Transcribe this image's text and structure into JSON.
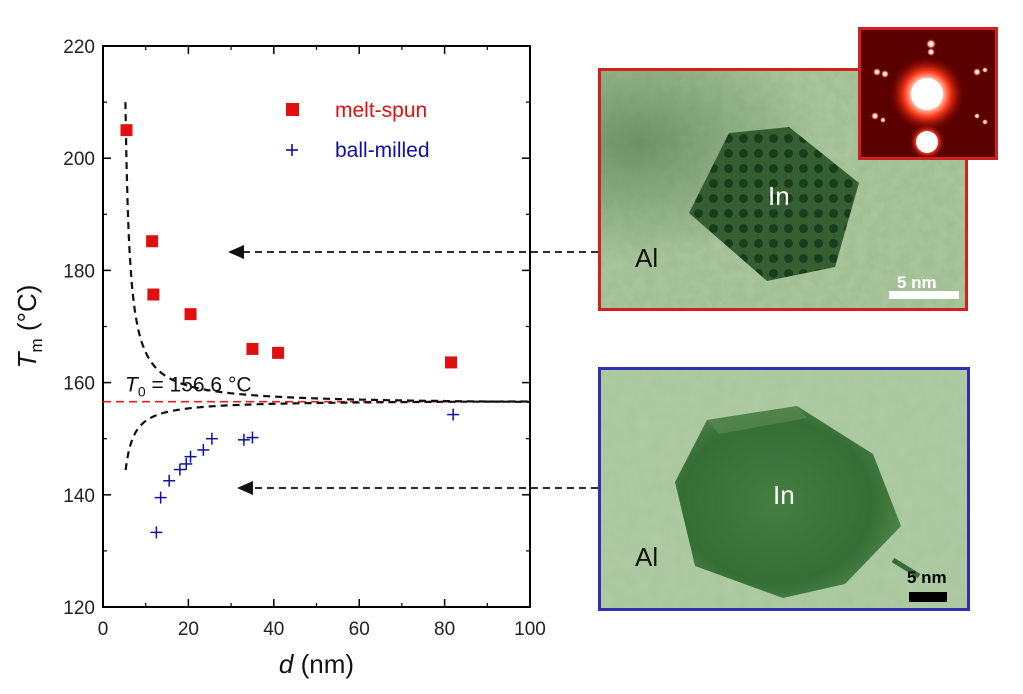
{
  "chart_data": {
    "type": "scatter",
    "xlabel_var": "d",
    "xlabel_unit": " (nm)",
    "ylabel_var": "T",
    "ylabel_sub": "m",
    "ylabel_unit": " (°C)",
    "xlim": [
      0,
      100
    ],
    "ylim": [
      120,
      220
    ],
    "xticks": [
      "0",
      "20",
      "40",
      "60",
      "80",
      "100"
    ],
    "yticks": [
      "120",
      "140",
      "160",
      "180",
      "200",
      "220"
    ],
    "reference_line": {
      "value": 156.6,
      "label_var": "T",
      "label_sub": "0",
      "label_text": " = 156.6 °C",
      "color": "#e02020"
    },
    "legend": [
      {
        "name": "melt-spun",
        "marker": "square",
        "color": "#e01010"
      },
      {
        "name": "ball-milled",
        "marker": "plus",
        "color": "#1010a0"
      }
    ],
    "series": [
      {
        "name": "melt-spun",
        "x": [
          5.5,
          11.5,
          11.8,
          20.5,
          35.0,
          41.0,
          81.5
        ],
        "y": [
          205.0,
          185.2,
          175.7,
          172.2,
          166.0,
          165.3,
          163.6
        ]
      },
      {
        "name": "ball-milled",
        "x": [
          12.5,
          13.5,
          15.5,
          18.0,
          19.5,
          20.5,
          23.5,
          25.5,
          33.0,
          35.0,
          82.0
        ],
        "y": [
          133.3,
          139.5,
          142.5,
          144.5,
          145.5,
          146.8,
          148.0,
          150.0,
          149.8,
          150.2,
          154.3
        ]
      }
    ],
    "fits": [
      {
        "name": "melt-spun fit",
        "T0": 156.6,
        "A": 5.4,
        "B": 4.25
      },
      {
        "name": "ball-milled fit",
        "T0": 156.6,
        "A": -2.5,
        "B": 3.3
      }
    ]
  },
  "images": {
    "tem1": {
      "label_particle": "In",
      "label_matrix": "Al",
      "scale_label": "5 nm"
    },
    "tem2": {
      "label_particle": "In",
      "label_matrix": "Al",
      "scale_label": "5 nm"
    }
  },
  "colors": {
    "red_frame": "#d02020",
    "blue_frame": "#3030b0",
    "tem_green": "#7aa56a"
  }
}
